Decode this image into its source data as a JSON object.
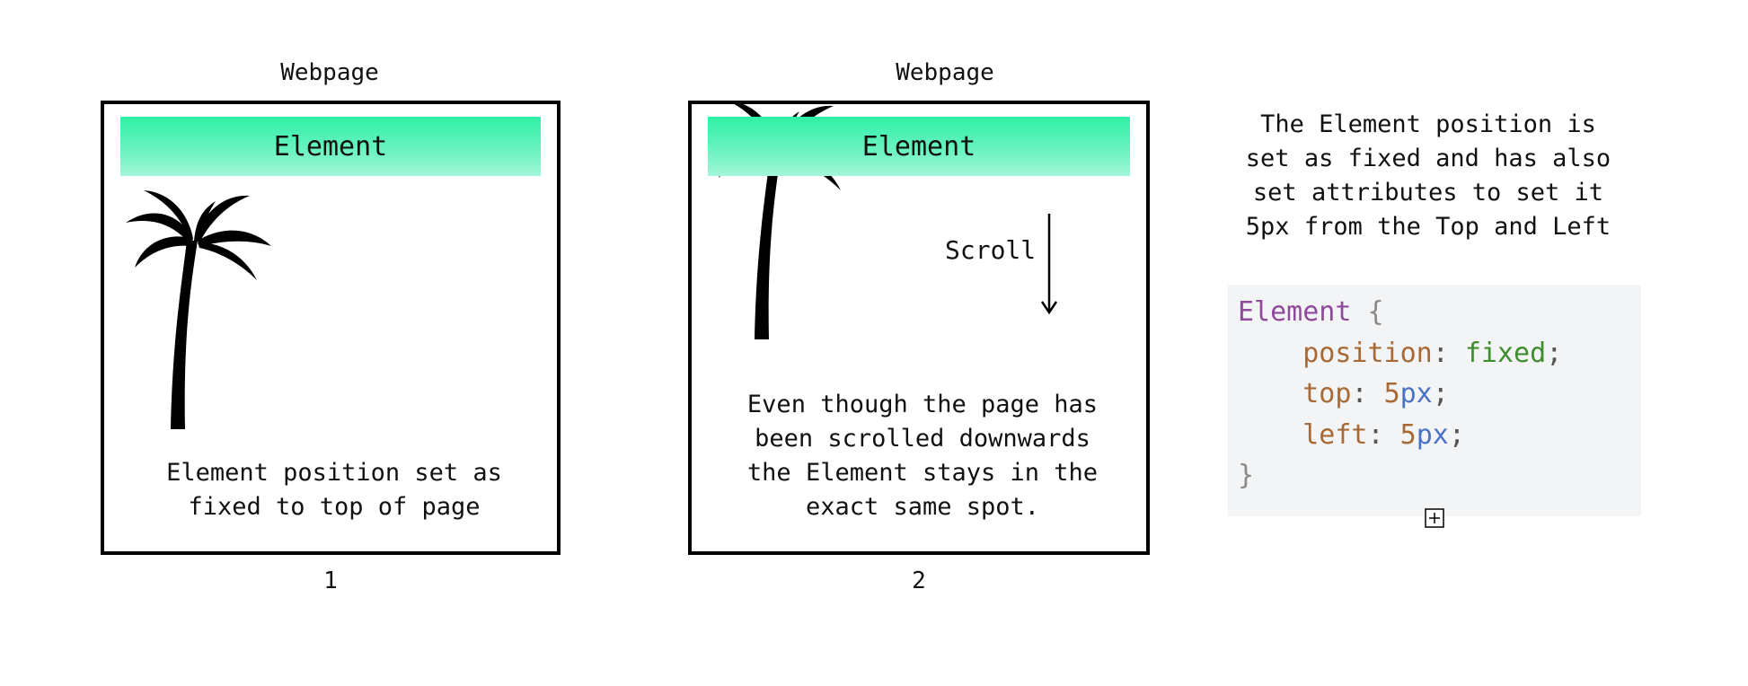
{
  "panel1": {
    "title": "Webpage",
    "element_label": "Element",
    "caption_lines": [
      "Element position set as",
      "fixed to top of page"
    ],
    "number": "1"
  },
  "panel2": {
    "title": "Webpage",
    "element_label": "Element",
    "scroll_label": "Scroll",
    "caption_lines": [
      "Even though the page has",
      "been scrolled downwards",
      "the Element stays in the",
      "exact same spot."
    ],
    "number": "2"
  },
  "description_lines": [
    "The Element position is",
    "set as fixed and has also",
    "set attributes to set it",
    "5px from the Top and Left"
  ],
  "code": {
    "selector": "Element",
    "open_brace": "{",
    "close_brace": "}",
    "declarations": [
      {
        "property": "position",
        "value": "fixed",
        "number": "",
        "unit": ""
      },
      {
        "property": "top",
        "value": "",
        "number": "5",
        "unit": "px"
      },
      {
        "property": "left",
        "value": "",
        "number": "5",
        "unit": "px"
      }
    ]
  },
  "colors": {
    "element_gradient_top": "#2ef0a6",
    "element_gradient_bottom": "#a4f6d7",
    "code_background": "#f2f4f5"
  },
  "icons": [
    "palm-tree-icon",
    "arrow-down-icon",
    "expand-icon"
  ]
}
